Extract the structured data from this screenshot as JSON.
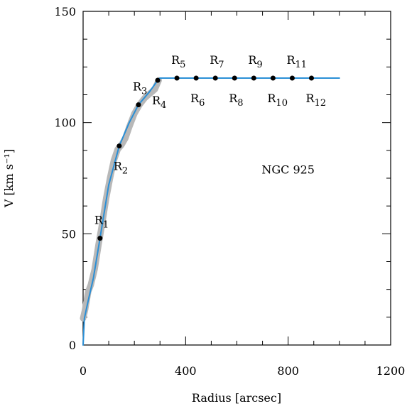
{
  "chart_data": {
    "type": "line",
    "xlabel": "Radius [arcsec]",
    "ylabel": "V [km s⁻¹]",
    "annotation": "NGC 925",
    "xlim": [
      0,
      1200
    ],
    "xticks": [
      0,
      400,
      800,
      1200
    ],
    "xminorticks": [
      100,
      200,
      300,
      500,
      600,
      700,
      900,
      1000,
      1100
    ],
    "ylim": [
      0,
      150
    ],
    "yticks": [
      0,
      50,
      100,
      150
    ],
    "yminorticks": [
      12.5,
      25,
      37.5,
      62.5,
      75,
      87.5,
      112.5,
      125,
      137.5
    ],
    "series": [
      {
        "color": "#b8b8b8",
        "x": [
          0,
          8,
          20,
          30,
          45,
          60,
          75,
          90,
          105,
          120,
          135,
          150,
          165,
          180,
          200,
          220,
          240,
          260,
          280,
          295
        ],
        "values": [
          12,
          16,
          24,
          27,
          34,
          45,
          55,
          66,
          75,
          83,
          88,
          90,
          93,
          98,
          104,
          108,
          111,
          113,
          115,
          119
        ]
      },
      {
        "color": "#2a8fd6",
        "x": [
          0,
          5,
          20,
          40,
          66,
          100,
          141,
          180,
          216,
          260,
          291,
          300,
          1000
        ],
        "values": [
          0,
          12,
          20,
          30,
          48,
          72,
          89.5,
          100,
          108,
          114,
          119,
          120,
          120
        ]
      }
    ],
    "points": {
      "x": [
        66,
        141,
        216,
        291,
        366,
        441,
        516,
        591,
        666,
        741,
        816,
        891
      ],
      "values": [
        48,
        89.5,
        108,
        119,
        120,
        120,
        120,
        120,
        120,
        120,
        120,
        120
      ],
      "labels": [
        "R1",
        "R2",
        "R3",
        "R4",
        "R5",
        "R6",
        "R7",
        "R8",
        "R9",
        "R10",
        "R11",
        "R12"
      ]
    }
  }
}
